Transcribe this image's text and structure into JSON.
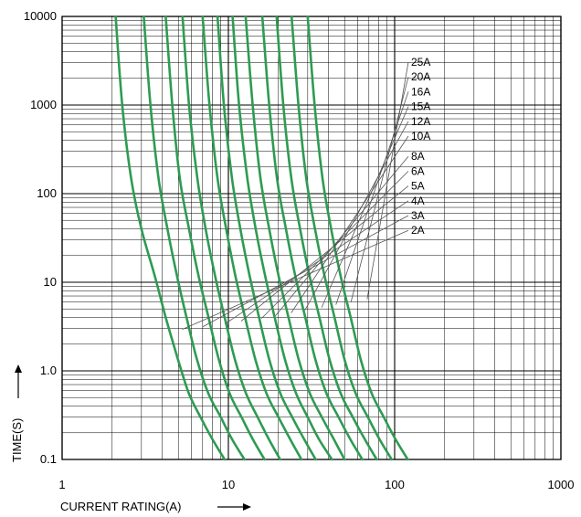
{
  "chart_data": {
    "type": "line",
    "xscale": "log",
    "yscale": "log",
    "xlim": [
      1,
      1000
    ],
    "ylim": [
      0.1,
      10000
    ],
    "xlabel": "CURRENT RATING(A)",
    "ylabel": "TIME(S)",
    "x_ticks": [
      "1",
      "10",
      "100",
      "1000"
    ],
    "y_ticks": [
      "0.1",
      "1.0",
      "10",
      "100",
      "1000",
      "10000"
    ],
    "grid": true,
    "curve_color": "#2e9b52",
    "grid_color": "#000000",
    "legend_placement": "right, with leader lines to curves",
    "series": [
      {
        "name": "2A",
        "x": [
          2.1,
          2.3,
          2.6,
          3.0,
          3.6,
          4.2,
          5.0,
          5.8,
          6.8,
          8.0,
          9.5
        ],
        "y": [
          10000,
          1000,
          150,
          40,
          12,
          4,
          1.3,
          0.55,
          0.3,
          0.17,
          0.1
        ]
      },
      {
        "name": "3A",
        "x": [
          3.1,
          3.4,
          3.8,
          4.3,
          4.9,
          5.6,
          6.5,
          7.6,
          9.0,
          10.5,
          12.5
        ],
        "y": [
          10000,
          1000,
          150,
          40,
          12,
          4,
          1.3,
          0.55,
          0.3,
          0.17,
          0.1
        ]
      },
      {
        "name": "4A",
        "x": [
          4.2,
          4.6,
          5.1,
          5.8,
          6.6,
          7.6,
          8.8,
          10.2,
          12.0,
          14.0,
          16.5
        ],
        "y": [
          10000,
          1000,
          150,
          40,
          12,
          4,
          1.3,
          0.55,
          0.3,
          0.17,
          0.1
        ]
      },
      {
        "name": "5A",
        "x": [
          5.3,
          5.8,
          6.5,
          7.3,
          8.3,
          9.5,
          11.0,
          12.8,
          15.0,
          17.5,
          20.5
        ],
        "y": [
          10000,
          1000,
          150,
          40,
          12,
          4,
          1.3,
          0.55,
          0.3,
          0.17,
          0.1
        ]
      },
      {
        "name": "6A",
        "x": [
          7.0,
          7.7,
          8.6,
          9.7,
          11.0,
          12.6,
          14.6,
          17.0,
          20.0,
          23.5,
          27.5
        ],
        "y": [
          10000,
          1000,
          150,
          40,
          12,
          4,
          1.3,
          0.55,
          0.3,
          0.17,
          0.1
        ]
      },
      {
        "name": "8A",
        "x": [
          8.6,
          9.4,
          10.5,
          11.8,
          13.4,
          15.3,
          17.7,
          20.6,
          24.2,
          28.5,
          33.5
        ],
        "y": [
          10000,
          1000,
          150,
          40,
          12,
          4,
          1.3,
          0.55,
          0.3,
          0.17,
          0.1
        ]
      },
      {
        "name": "10A",
        "x": [
          10.6,
          11.6,
          13.0,
          14.6,
          16.6,
          19.0,
          22.0,
          25.6,
          30.0,
          35.0,
          42.0
        ],
        "y": [
          10000,
          1000,
          150,
          40,
          12,
          4,
          1.3,
          0.55,
          0.3,
          0.17,
          0.1
        ]
      },
      {
        "name": "12A",
        "x": [
          12.7,
          14.0,
          15.6,
          17.6,
          20.0,
          23.0,
          26.6,
          31.0,
          36.5,
          43.0,
          50.0
        ],
        "y": [
          10000,
          1000,
          150,
          40,
          12,
          4,
          1.3,
          0.55,
          0.3,
          0.17,
          0.1
        ]
      },
      {
        "name": "15A",
        "x": [
          16.0,
          17.6,
          19.6,
          22.2,
          25.2,
          29.0,
          33.5,
          39.0,
          46.0,
          54.0,
          64.0
        ],
        "y": [
          10000,
          1000,
          150,
          40,
          12,
          4,
          1.3,
          0.55,
          0.3,
          0.17,
          0.1
        ]
      },
      {
        "name": "16A",
        "x": [
          19.5,
          21.4,
          23.9,
          27.0,
          30.7,
          35.3,
          40.8,
          47.5,
          56.0,
          66.0,
          78.0
        ],
        "y": [
          10000,
          1000,
          150,
          40,
          12,
          4,
          1.3,
          0.55,
          0.3,
          0.17,
          0.1
        ]
      },
      {
        "name": "20A",
        "x": [
          24.0,
          26.4,
          29.4,
          33.2,
          37.8,
          43.5,
          50.2,
          58.5,
          69.0,
          81.0,
          96.0
        ],
        "y": [
          10000,
          1000,
          150,
          40,
          12,
          4,
          1.3,
          0.55,
          0.3,
          0.17,
          0.1
        ]
      },
      {
        "name": "25A",
        "x": [
          30.0,
          33.0,
          36.8,
          41.5,
          47.2,
          54.4,
          62.8,
          73.0,
          86.0,
          101.0,
          120.0
        ],
        "y": [
          10000,
          1000,
          150,
          40,
          12,
          4,
          1.3,
          0.55,
          0.3,
          0.17,
          0.1
        ]
      }
    ]
  }
}
